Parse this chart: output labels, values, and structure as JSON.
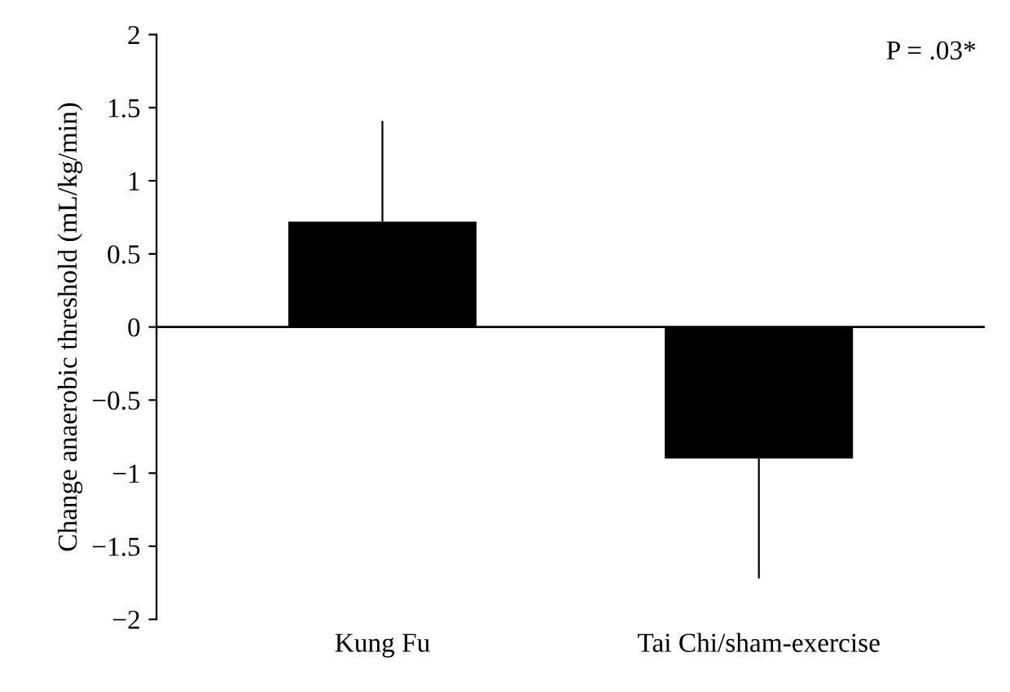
{
  "chart_data": {
    "type": "bar",
    "ylabel": "Change anaerobic threshold (mL/kg/min)",
    "categories": [
      "Kung Fu",
      "Tai Chi/sham-exercise"
    ],
    "values": [
      0.72,
      -0.9
    ],
    "color": "#000000",
    "errors": [
      [
        0.72,
        1.41
      ],
      [
        -1.72,
        -0.9
      ]
    ],
    "ylim": [
      -2,
      2
    ],
    "yticks": [
      -2,
      -1.5,
      -1,
      -0.5,
      0,
      0.5,
      1,
      1.5,
      2
    ],
    "grid": false,
    "legend": false,
    "ref_lines": [
      {
        "axis": "y",
        "value": 0,
        "color": "#000000"
      }
    ],
    "annotations": [
      "P = .03*"
    ]
  }
}
